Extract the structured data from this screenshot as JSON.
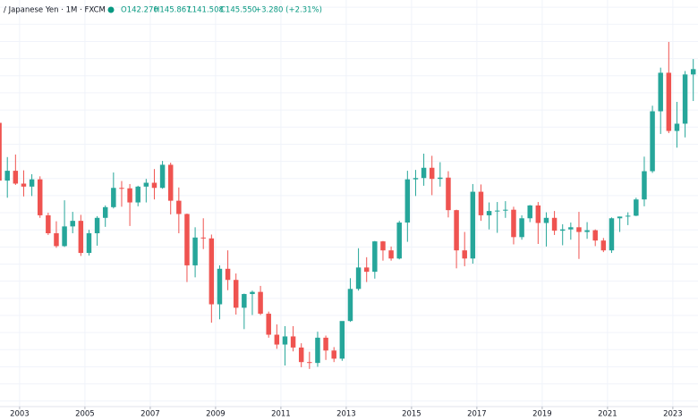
{
  "chart_data": {
    "type": "candlestick",
    "title": "/ Japanese Yen · 1M · FXCM",
    "header": {
      "open": "O142.270",
      "high": "H145.867",
      "low": "L141.508",
      "close": "C145.550",
      "change": "+3.280 (+2.31%)"
    },
    "up_color": "#26a69a",
    "down_color": "#ef5350",
    "xlim": [
      2002.4,
      2023.77
    ],
    "ylim": [
      66.7,
      161.7
    ],
    "xticks": [
      2003,
      2005,
      2007,
      2009,
      2011,
      2013,
      2015,
      2017,
      2019,
      2021,
      2023
    ],
    "grid": true,
    "ygrid": [
      68,
      72,
      76,
      80,
      84,
      88,
      92,
      96,
      100,
      104,
      108,
      112,
      116,
      120,
      124,
      128,
      132,
      136,
      140,
      144,
      148,
      152,
      156,
      160
    ],
    "x": [
      2002.375,
      2002.625,
      2002.875,
      2003.125,
      2003.375,
      2003.625,
      2003.875,
      2004.125,
      2004.375,
      2004.625,
      2004.875,
      2005.125,
      2005.375,
      2005.625,
      2005.875,
      2006.125,
      2006.375,
      2006.625,
      2006.875,
      2007.125,
      2007.375,
      2007.625,
      2007.875,
      2008.125,
      2008.375,
      2008.625,
      2008.875,
      2009.125,
      2009.375,
      2009.625,
      2009.875,
      2010.125,
      2010.375,
      2010.625,
      2010.875,
      2011.125,
      2011.375,
      2011.625,
      2011.875,
      2012.125,
      2012.375,
      2012.625,
      2012.875,
      2013.125,
      2013.375,
      2013.625,
      2013.875,
      2014.125,
      2014.375,
      2014.625,
      2014.875,
      2015.125,
      2015.375,
      2015.625,
      2015.875,
      2016.125,
      2016.375,
      2016.625,
      2016.875,
      2017.125,
      2017.375,
      2017.625,
      2017.875,
      2018.125,
      2018.375,
      2018.625,
      2018.875,
      2019.125,
      2019.375,
      2019.625,
      2019.875,
      2020.125,
      2020.375,
      2020.625,
      2020.875,
      2021.125,
      2021.375,
      2021.625,
      2021.875,
      2022.125,
      2022.375,
      2022.625,
      2022.875,
      2023.125,
      2023.375,
      2023.625
    ],
    "open": [
      133,
      119.5,
      121.8,
      118.8,
      118.1,
      119.8,
      111.4,
      107.2,
      104.2,
      108.8,
      110.1,
      102.6,
      107.2,
      110.8,
      113.3,
      117.8,
      117.7,
      114.4,
      118.1,
      119,
      117.8,
      123.2,
      114.8,
      111.7,
      99.7,
      106.2,
      106,
      90.6,
      98.9,
      96.3,
      89.8,
      93,
      93.5,
      88.4,
      83.5,
      81.2,
      83.1,
      80.5,
      77.1,
      76.9,
      82.8,
      79.8,
      77.9,
      86.7,
      94.2,
      99.2,
      98.2,
      105.3,
      103.2,
      101.3,
      109.7,
      119.8,
      120.1,
      122.5,
      119.9,
      120.2,
      112.6,
      103.2,
      101.3,
      116.9,
      111.4,
      112.4,
      112.5,
      112.7,
      106.3,
      110.7,
      113.7,
      109.6,
      110.8,
      107.8,
      108.1,
      108.6,
      107.5,
      107.9,
      105.5,
      103.2,
      110.7,
      111.1,
      111.3,
      115.1,
      121.7,
      135.7,
      144.7,
      131.1,
      132.8,
      144.3
    ],
    "high": [
      133.5,
      125,
      125.6,
      121.9,
      121,
      120.5,
      112,
      110,
      114.9,
      112.2,
      111.5,
      108,
      111.2,
      113.7,
      121.4,
      119.4,
      118.7,
      118.3,
      119.9,
      122.2,
      124.1,
      123.7,
      117.9,
      111.8,
      108.6,
      110.7,
      106.9,
      99.7,
      103.2,
      97.8,
      93.1,
      93.8,
      94.9,
      88.9,
      85.9,
      85.5,
      85.5,
      81.5,
      79.5,
      84.2,
      83.3,
      80.6,
      86.6,
      96.7,
      103.7,
      101.6,
      105.4,
      105.4,
      104.1,
      110.1,
      121.8,
      122,
      125.8,
      125.3,
      123.8,
      121.7,
      112.7,
      107.5,
      118.7,
      118.6,
      114.4,
      114.5,
      114.7,
      113.4,
      111.4,
      113.8,
      114.5,
      112.1,
      112.4,
      109.3,
      109.7,
      112.2,
      109.8,
      108.1,
      106.1,
      110.9,
      111.1,
      112.1,
      115.5,
      125.1,
      137,
      145.9,
      151.9,
      137.9,
      145.1,
      147.9
    ],
    "low": [
      115.5,
      115.5,
      118.5,
      115.8,
      115.9,
      110.8,
      106.8,
      103.8,
      104,
      107.2,
      101.9,
      102,
      104.3,
      108.7,
      113,
      113.4,
      108.9,
      113.5,
      114.4,
      115.1,
      117.6,
      111.6,
      107.2,
      95.8,
      96.9,
      103.5,
      86.3,
      87.1,
      93.9,
      88.2,
      84.8,
      88.1,
      88.1,
      82.8,
      80.2,
      76.3,
      79.6,
      75.9,
      75.5,
      76,
      77.6,
      77.1,
      77.4,
      86.5,
      93.8,
      95.8,
      96.6,
      100.8,
      100.8,
      101.1,
      105.2,
      115.9,
      118.3,
      116.1,
      118.1,
      110.9,
      99,
      99.5,
      100.1,
      110.1,
      108.1,
      107.3,
      110.8,
      104.6,
      105.7,
      109.8,
      104.7,
      104.1,
      106.8,
      104.4,
      105.7,
      101.2,
      105.9,
      104.2,
      102.8,
      102.6,
      107.5,
      109.1,
      111.2,
      113.5,
      121.3,
      130.4,
      130.6,
      127.2,
      129.6,
      138.1
    ],
    "close": [
      119.5,
      121.8,
      118.8,
      118.1,
      119.8,
      111.4,
      107.2,
      104.2,
      108.8,
      110.1,
      102.6,
      107.2,
      110.8,
      113.3,
      117.8,
      117.7,
      114.4,
      118.1,
      119,
      117.8,
      123.2,
      114.8,
      111.7,
      99.7,
      106.2,
      106,
      90.6,
      98.9,
      96.3,
      89.8,
      93,
      93.5,
      88.4,
      83.5,
      81.2,
      83.1,
      80.5,
      77.1,
      76.9,
      82.8,
      79.8,
      77.9,
      86.7,
      94.2,
      99.2,
      98.2,
      105.3,
      103.2,
      101.3,
      109.7,
      119.8,
      120.1,
      122.5,
      119.9,
      120.2,
      112.6,
      103.2,
      101.3,
      116.9,
      111.4,
      112.4,
      112.5,
      112.7,
      106.3,
      110.7,
      113.7,
      109.6,
      110.8,
      107.8,
      108.1,
      108.6,
      107.5,
      107.9,
      105.5,
      103.2,
      110.7,
      111.1,
      111.3,
      115.1,
      121.7,
      135.7,
      144.7,
      131.1,
      132.8,
      144.3,
      145.55
    ]
  }
}
